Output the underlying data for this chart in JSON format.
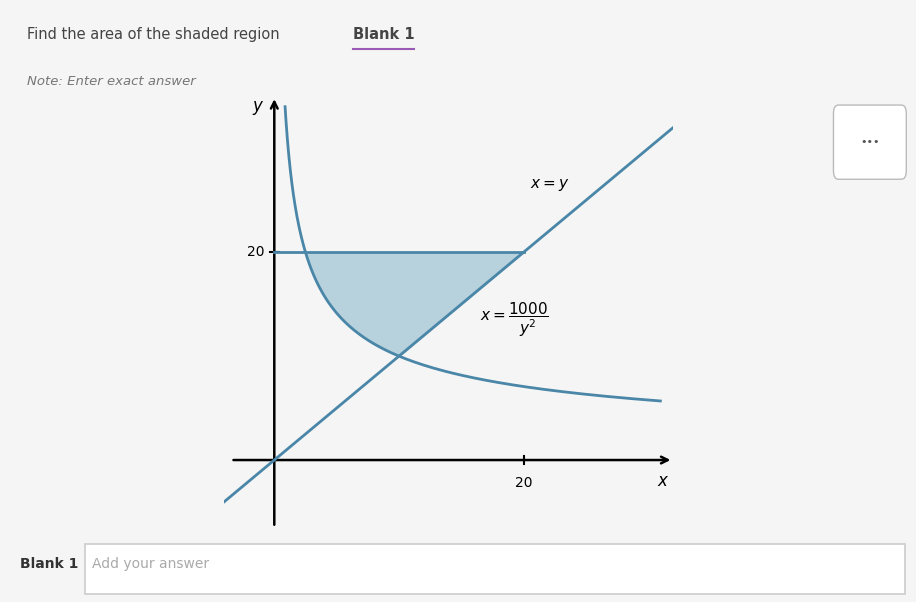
{
  "title_text": "Find the area of the shaded region ",
  "title_bold": "Blank 1",
  "note_text": "Note: Enter exact answer",
  "blank_label": "Blank 1",
  "blank_placeholder": "Add your answer",
  "shade_color": "#a8c8d8",
  "line_color": "#4a86a8",
  "bg_gray": "#e8e8e8",
  "bg_white": "#ffffff",
  "bg_page": "#f5f5f5",
  "xlim": [
    -4,
    32
  ],
  "ylim": [
    -7,
    35
  ]
}
